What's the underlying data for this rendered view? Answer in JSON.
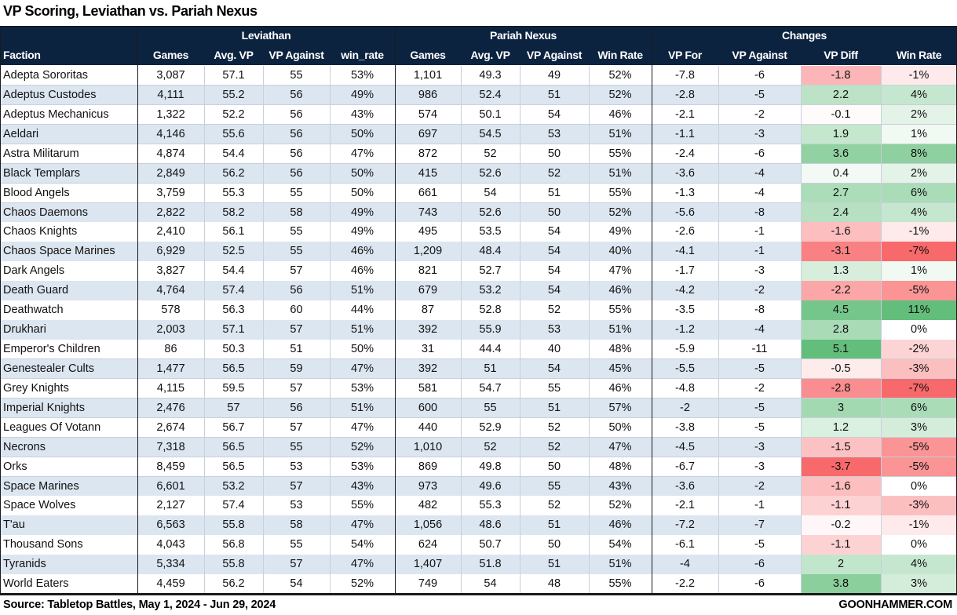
{
  "title": "VP Scoring, Leviathan vs. Pariah Nexus",
  "table": {
    "groups": [
      "Leviathan",
      "Pariah Nexus",
      "Changes"
    ],
    "columns": [
      "Faction",
      "Games",
      "Avg. VP",
      "VP Against",
      "win_rate",
      "Games",
      "Avg. VP",
      "VP Against",
      "Win Rate",
      "VP For",
      "VP Against",
      "VP Diff",
      "Win Rate"
    ],
    "rows": [
      [
        "Adepta Sororitas",
        "3,087",
        "57.1",
        "55",
        "53%",
        "1,101",
        "49.3",
        "49",
        "52%",
        "-7.8",
        "-6",
        "-1.8",
        "-1%"
      ],
      [
        "Adeptus Custodes",
        "4,111",
        "55.2",
        "56",
        "49%",
        "986",
        "52.4",
        "51",
        "52%",
        "-2.8",
        "-5",
        "2.2",
        "4%"
      ],
      [
        "Adeptus Mechanicus",
        "1,322",
        "52.2",
        "56",
        "43%",
        "574",
        "50.1",
        "54",
        "46%",
        "-2.1",
        "-2",
        "-0.1",
        "2%"
      ],
      [
        "Aeldari",
        "4,146",
        "55.6",
        "56",
        "50%",
        "697",
        "54.5",
        "53",
        "51%",
        "-1.1",
        "-3",
        "1.9",
        "1%"
      ],
      [
        "Astra Militarum",
        "4,874",
        "54.4",
        "56",
        "47%",
        "872",
        "52",
        "50",
        "55%",
        "-2.4",
        "-6",
        "3.6",
        "8%"
      ],
      [
        "Black Templars",
        "2,849",
        "56.2",
        "56",
        "50%",
        "415",
        "52.6",
        "52",
        "51%",
        "-3.6",
        "-4",
        "0.4",
        "2%"
      ],
      [
        "Blood Angels",
        "3,759",
        "55.3",
        "55",
        "50%",
        "661",
        "54",
        "51",
        "55%",
        "-1.3",
        "-4",
        "2.7",
        "6%"
      ],
      [
        "Chaos Daemons",
        "2,822",
        "58.2",
        "58",
        "49%",
        "743",
        "52.6",
        "50",
        "52%",
        "-5.6",
        "-8",
        "2.4",
        "4%"
      ],
      [
        "Chaos Knights",
        "2,410",
        "56.1",
        "55",
        "49%",
        "495",
        "53.5",
        "54",
        "49%",
        "-2.6",
        "-1",
        "-1.6",
        "-1%"
      ],
      [
        "Chaos Space Marines",
        "6,929",
        "52.5",
        "55",
        "46%",
        "1,209",
        "48.4",
        "54",
        "40%",
        "-4.1",
        "-1",
        "-3.1",
        "-7%"
      ],
      [
        "Dark Angels",
        "3,827",
        "54.4",
        "57",
        "46%",
        "821",
        "52.7",
        "54",
        "47%",
        "-1.7",
        "-3",
        "1.3",
        "1%"
      ],
      [
        "Death Guard",
        "4,764",
        "57.4",
        "56",
        "51%",
        "679",
        "53.2",
        "54",
        "46%",
        "-4.2",
        "-2",
        "-2.2",
        "-5%"
      ],
      [
        "Deathwatch",
        "578",
        "56.3",
        "60",
        "44%",
        "87",
        "52.8",
        "52",
        "55%",
        "-3.5",
        "-8",
        "4.5",
        "11%"
      ],
      [
        "Drukhari",
        "2,003",
        "57.1",
        "57",
        "51%",
        "392",
        "55.9",
        "53",
        "51%",
        "-1.2",
        "-4",
        "2.8",
        "0%"
      ],
      [
        "Emperor's Children",
        "86",
        "50.3",
        "51",
        "50%",
        "31",
        "44.4",
        "40",
        "48%",
        "-5.9",
        "-11",
        "5.1",
        "-2%"
      ],
      [
        "Genestealer Cults",
        "1,477",
        "56.5",
        "59",
        "47%",
        "392",
        "51",
        "54",
        "45%",
        "-5.5",
        "-5",
        "-0.5",
        "-3%"
      ],
      [
        "Grey Knights",
        "4,115",
        "59.5",
        "57",
        "53%",
        "581",
        "54.7",
        "55",
        "46%",
        "-4.8",
        "-2",
        "-2.8",
        "-7%"
      ],
      [
        "Imperial Knights",
        "2,476",
        "57",
        "56",
        "51%",
        "600",
        "55",
        "51",
        "57%",
        "-2",
        "-5",
        "3",
        "6%"
      ],
      [
        "Leagues Of Votann",
        "2,674",
        "56.7",
        "57",
        "47%",
        "440",
        "52.9",
        "52",
        "50%",
        "-3.8",
        "-5",
        "1.2",
        "3%"
      ],
      [
        "Necrons",
        "7,318",
        "56.5",
        "55",
        "52%",
        "1,010",
        "52",
        "52",
        "47%",
        "-4.5",
        "-3",
        "-1.5",
        "-5%"
      ],
      [
        "Orks",
        "8,459",
        "56.5",
        "53",
        "53%",
        "869",
        "49.8",
        "50",
        "48%",
        "-6.7",
        "-3",
        "-3.7",
        "-5%"
      ],
      [
        "Space Marines",
        "6,601",
        "53.2",
        "57",
        "43%",
        "973",
        "49.6",
        "55",
        "43%",
        "-3.6",
        "-2",
        "-1.6",
        "0%"
      ],
      [
        "Space Wolves",
        "2,127",
        "57.4",
        "53",
        "55%",
        "482",
        "55.3",
        "52",
        "52%",
        "-2.1",
        "-1",
        "-1.1",
        "-3%"
      ],
      [
        "T'au",
        "6,563",
        "55.8",
        "58",
        "47%",
        "1,056",
        "48.6",
        "51",
        "46%",
        "-7.2",
        "-7",
        "-0.2",
        "-1%"
      ],
      [
        "Thousand Sons",
        "4,043",
        "56.8",
        "55",
        "54%",
        "624",
        "50.7",
        "50",
        "54%",
        "-6.1",
        "-5",
        "-1.1",
        "0%"
      ],
      [
        "Tyranids",
        "5,334",
        "55.8",
        "57",
        "47%",
        "1,407",
        "51.8",
        "51",
        "51%",
        "-4",
        "-6",
        "2",
        "4%"
      ],
      [
        "World Eaters",
        "4,459",
        "56.2",
        "54",
        "52%",
        "749",
        "54",
        "48",
        "55%",
        "-2.2",
        "-6",
        "3.8",
        "3%"
      ]
    ]
  },
  "footer": {
    "source": "Source: Tabletop Battles, May 1, 2024 - Jun 29, 2024",
    "brand": "GOONHAMMER.COM"
  }
}
